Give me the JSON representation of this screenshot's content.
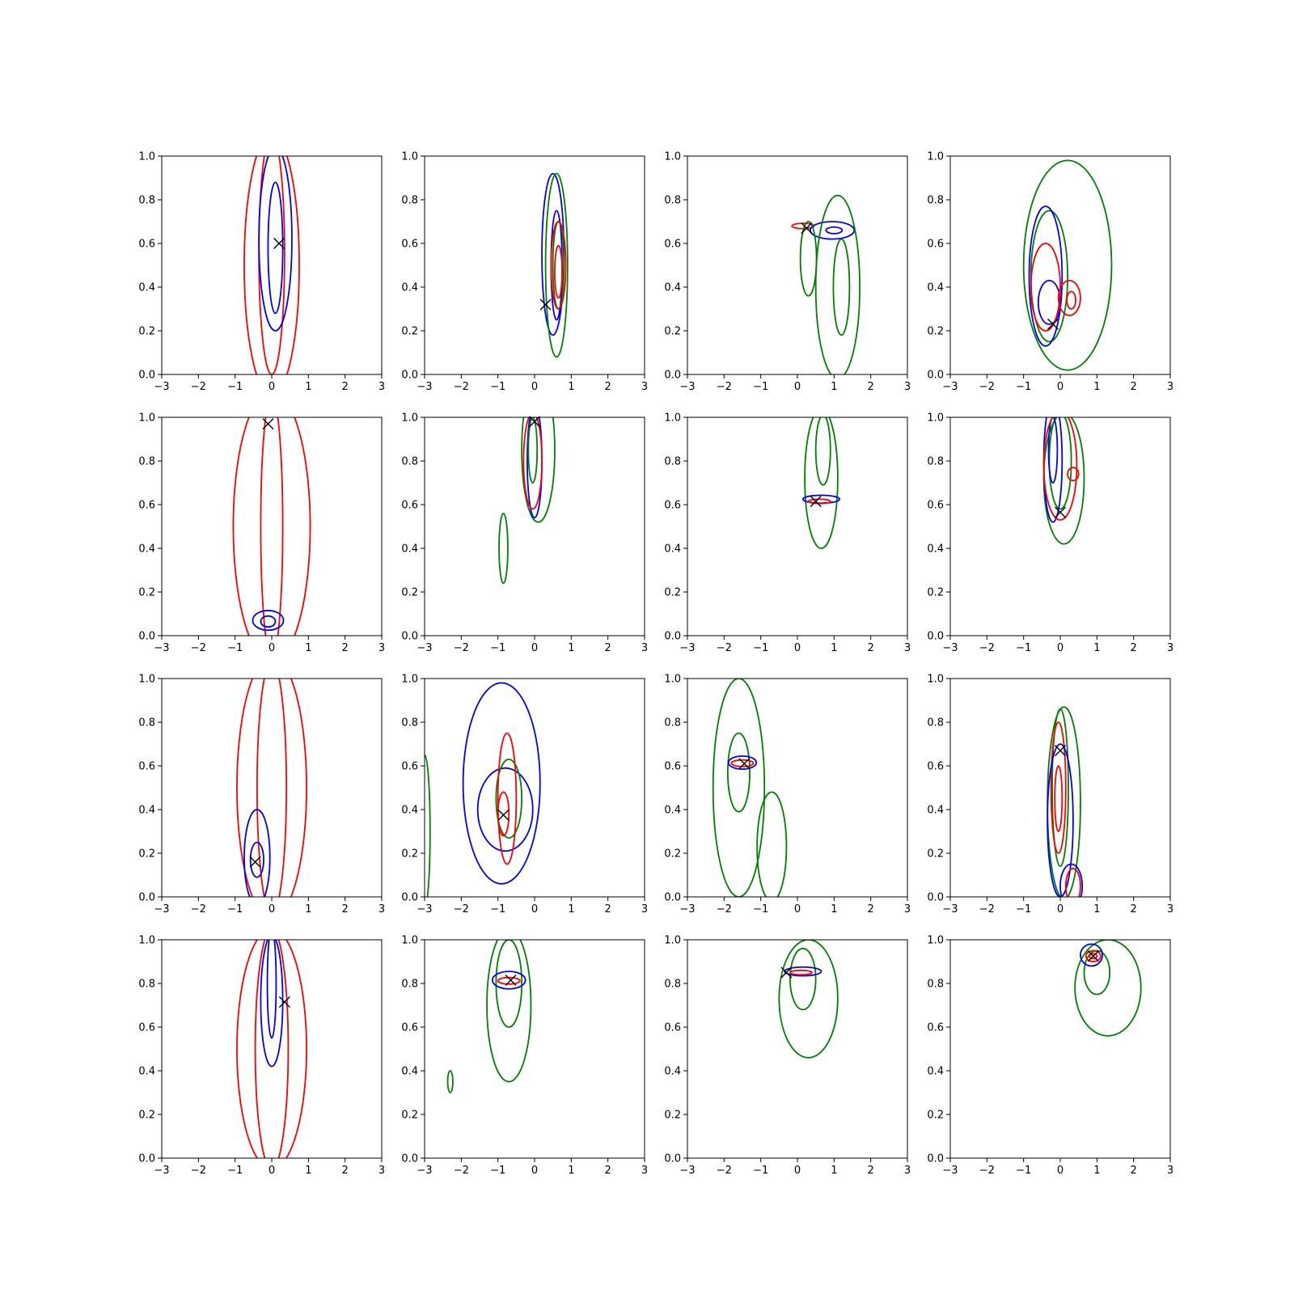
{
  "chart_data": {
    "type": "contour-grid",
    "title": "",
    "rows": 4,
    "cols": 4,
    "xlim": [
      -3,
      3
    ],
    "ylim": [
      0,
      1
    ],
    "xticks": [
      -3,
      -2,
      -1,
      0,
      1,
      2,
      3
    ],
    "yticks": [
      0.0,
      0.2,
      0.4,
      0.6,
      0.8,
      1.0
    ],
    "xtick_labels": [
      "−3",
      "−2",
      "−1",
      "0",
      "1",
      "2",
      "3"
    ],
    "ytick_labels": [
      "0.0",
      "0.2",
      "0.4",
      "0.6",
      "0.8",
      "1.0"
    ],
    "colors": {
      "red": "#ff0000",
      "blue": "#0000ff",
      "green": "#008000",
      "marker": "#000000"
    },
    "grid": false,
    "panels": [
      {
        "marker": [
          0.2,
          0.6
        ],
        "contours": [
          {
            "color": "red",
            "cx": 0.0,
            "cy": 0.5,
            "rx": 0.75,
            "ry": 0.6
          },
          {
            "color": "red",
            "cx": 0.0,
            "cy": 0.55,
            "rx": 0.35,
            "ry": 0.55
          },
          {
            "color": "blue",
            "cx": 0.1,
            "cy": 0.62,
            "rx": 0.45,
            "ry": 0.42
          },
          {
            "color": "blue",
            "cx": 0.1,
            "cy": 0.58,
            "rx": 0.2,
            "ry": 0.3
          }
        ]
      },
      {
        "marker": [
          0.3,
          0.32
        ],
        "contours": [
          {
            "color": "blue",
            "cx": 0.5,
            "cy": 0.55,
            "rx": 0.3,
            "ry": 0.37
          },
          {
            "color": "blue",
            "cx": 0.6,
            "cy": 0.5,
            "rx": 0.15,
            "ry": 0.25
          },
          {
            "color": "green",
            "cx": 0.6,
            "cy": 0.5,
            "rx": 0.3,
            "ry": 0.42
          },
          {
            "color": "green",
            "cx": 0.65,
            "cy": 0.5,
            "rx": 0.15,
            "ry": 0.2
          },
          {
            "color": "red",
            "cx": 0.65,
            "cy": 0.5,
            "rx": 0.2,
            "ry": 0.2
          },
          {
            "color": "red",
            "cx": 0.65,
            "cy": 0.47,
            "rx": 0.1,
            "ry": 0.12
          }
        ]
      },
      {
        "marker": [
          0.25,
          0.67
        ],
        "contours": [
          {
            "color": "red",
            "cx": 0.15,
            "cy": 0.68,
            "rx": 0.3,
            "ry": 0.012
          },
          {
            "color": "blue",
            "cx": 0.95,
            "cy": 0.66,
            "rx": 0.6,
            "ry": 0.04
          },
          {
            "color": "blue",
            "cx": 1.0,
            "cy": 0.66,
            "rx": 0.22,
            "ry": 0.015
          },
          {
            "color": "green",
            "cx": 0.3,
            "cy": 0.53,
            "rx": 0.22,
            "ry": 0.17
          },
          {
            "color": "green",
            "cx": 1.1,
            "cy": 0.4,
            "rx": 0.6,
            "ry": 0.42
          },
          {
            "color": "green",
            "cx": 1.2,
            "cy": 0.4,
            "rx": 0.22,
            "ry": 0.22
          }
        ]
      },
      {
        "marker": [
          -0.2,
          0.23
        ],
        "contours": [
          {
            "color": "green",
            "cx": 0.2,
            "cy": 0.5,
            "rx": 1.2,
            "ry": 0.48
          },
          {
            "color": "green",
            "cx": -0.3,
            "cy": 0.45,
            "rx": 0.5,
            "ry": 0.3
          },
          {
            "color": "blue",
            "cx": -0.4,
            "cy": 0.45,
            "rx": 0.45,
            "ry": 0.32
          },
          {
            "color": "blue",
            "cx": -0.3,
            "cy": 0.33,
            "rx": 0.3,
            "ry": 0.1
          },
          {
            "color": "red",
            "cx": -0.4,
            "cy": 0.4,
            "rx": 0.4,
            "ry": 0.2
          },
          {
            "color": "red",
            "cx": 0.25,
            "cy": 0.35,
            "rx": 0.3,
            "ry": 0.08
          },
          {
            "color": "red",
            "cx": 0.3,
            "cy": 0.34,
            "rx": 0.12,
            "ry": 0.04
          }
        ]
      },
      {
        "marker": [
          -0.1,
          0.97
        ],
        "contours": [
          {
            "color": "red",
            "cx": 0.0,
            "cy": 0.5,
            "rx": 1.05,
            "ry": 0.62
          },
          {
            "color": "red",
            "cx": 0.0,
            "cy": 0.5,
            "rx": 0.3,
            "ry": 0.6
          },
          {
            "color": "blue",
            "cx": -0.1,
            "cy": 0.07,
            "rx": 0.42,
            "ry": 0.045
          },
          {
            "color": "blue",
            "cx": -0.1,
            "cy": 0.065,
            "rx": 0.2,
            "ry": 0.025
          }
        ]
      },
      {
        "marker": [
          0.0,
          0.98
        ],
        "contours": [
          {
            "color": "green",
            "cx": 0.1,
            "cy": 0.85,
            "rx": 0.45,
            "ry": 0.33
          },
          {
            "color": "green",
            "cx": -0.85,
            "cy": 0.4,
            "rx": 0.12,
            "ry": 0.16
          },
          {
            "color": "blue",
            "cx": 0.0,
            "cy": 0.8,
            "rx": 0.2,
            "ry": 0.26
          },
          {
            "color": "red",
            "cx": -0.05,
            "cy": 0.8,
            "rx": 0.25,
            "ry": 0.22
          },
          {
            "color": "green",
            "cx": -0.05,
            "cy": 0.85,
            "rx": 0.12,
            "ry": 0.15
          }
        ]
      },
      {
        "marker": [
          0.5,
          0.615
        ],
        "contours": [
          {
            "color": "green",
            "cx": 0.65,
            "cy": 0.72,
            "rx": 0.45,
            "ry": 0.32
          },
          {
            "color": "green",
            "cx": 0.7,
            "cy": 0.85,
            "rx": 0.2,
            "ry": 0.16
          },
          {
            "color": "blue",
            "cx": 0.65,
            "cy": 0.625,
            "rx": 0.5,
            "ry": 0.018
          },
          {
            "color": "red",
            "cx": 0.6,
            "cy": 0.615,
            "rx": 0.3,
            "ry": 0.01
          }
        ]
      },
      {
        "marker": [
          0.0,
          0.565
        ],
        "contours": [
          {
            "color": "green",
            "cx": 0.1,
            "cy": 0.72,
            "rx": 0.55,
            "ry": 0.3
          },
          {
            "color": "green",
            "cx": 0.0,
            "cy": 0.8,
            "rx": 0.3,
            "ry": 0.22
          },
          {
            "color": "blue",
            "cx": -0.2,
            "cy": 0.8,
            "rx": 0.25,
            "ry": 0.28
          },
          {
            "color": "blue",
            "cx": -0.2,
            "cy": 0.85,
            "rx": 0.12,
            "ry": 0.15
          },
          {
            "color": "red",
            "cx": 0.0,
            "cy": 0.78,
            "rx": 0.45,
            "ry": 0.25
          },
          {
            "color": "red",
            "cx": 0.35,
            "cy": 0.74,
            "rx": 0.15,
            "ry": 0.03
          }
        ]
      },
      {
        "marker": [
          -0.45,
          0.16
        ],
        "contours": [
          {
            "color": "red",
            "cx": 0.0,
            "cy": 0.5,
            "rx": 0.95,
            "ry": 0.6
          },
          {
            "color": "red",
            "cx": 0.0,
            "cy": 0.5,
            "rx": 0.4,
            "ry": 0.58
          },
          {
            "color": "blue",
            "cx": -0.4,
            "cy": 0.18,
            "rx": 0.35,
            "ry": 0.22
          },
          {
            "color": "blue",
            "cx": -0.4,
            "cy": 0.17,
            "rx": 0.18,
            "ry": 0.08
          }
        ]
      },
      {
        "marker": [
          -0.85,
          0.375
        ],
        "contours": [
          {
            "color": "blue",
            "cx": -0.9,
            "cy": 0.52,
            "rx": 1.05,
            "ry": 0.46
          },
          {
            "color": "blue",
            "cx": -0.8,
            "cy": 0.4,
            "rx": 0.75,
            "ry": 0.19
          },
          {
            "color": "green",
            "cx": -0.7,
            "cy": 0.45,
            "rx": 0.35,
            "ry": 0.18
          },
          {
            "color": "red",
            "cx": -0.75,
            "cy": 0.45,
            "rx": 0.25,
            "ry": 0.3
          },
          {
            "color": "red",
            "cx": -0.85,
            "cy": 0.38,
            "rx": 0.15,
            "ry": 0.1
          },
          {
            "color": "green",
            "cx": -3.0,
            "cy": 0.3,
            "rx": 0.15,
            "ry": 0.35
          }
        ]
      },
      {
        "marker": [
          -1.45,
          0.61
        ],
        "contours": [
          {
            "color": "green",
            "cx": -1.6,
            "cy": 0.5,
            "rx": 0.7,
            "ry": 0.5
          },
          {
            "color": "green",
            "cx": -1.6,
            "cy": 0.57,
            "rx": 0.3,
            "ry": 0.18
          },
          {
            "color": "green",
            "cx": -0.7,
            "cy": 0.23,
            "rx": 0.4,
            "ry": 0.25
          },
          {
            "color": "blue",
            "cx": -1.5,
            "cy": 0.615,
            "rx": 0.38,
            "ry": 0.03
          },
          {
            "color": "red",
            "cx": -1.5,
            "cy": 0.612,
            "rx": 0.3,
            "ry": 0.015
          }
        ]
      },
      {
        "marker": [
          0.0,
          0.67
        ],
        "contours": [
          {
            "color": "green",
            "cx": 0.1,
            "cy": 0.43,
            "rx": 0.45,
            "ry": 0.44
          },
          {
            "color": "green",
            "cx": 0.0,
            "cy": 0.5,
            "rx": 0.22,
            "ry": 0.36
          },
          {
            "color": "red",
            "cx": -0.05,
            "cy": 0.5,
            "rx": 0.2,
            "ry": 0.3
          },
          {
            "color": "red",
            "cx": -0.05,
            "cy": 0.45,
            "rx": 0.1,
            "ry": 0.15
          },
          {
            "color": "blue",
            "cx": 0.0,
            "cy": 0.35,
            "rx": 0.35,
            "ry": 0.35
          },
          {
            "color": "blue",
            "cx": 0.3,
            "cy": 0.05,
            "rx": 0.3,
            "ry": 0.1
          },
          {
            "color": "red",
            "cx": 0.35,
            "cy": 0.05,
            "rx": 0.2,
            "ry": 0.08
          }
        ]
      },
      {
        "marker": [
          0.35,
          0.715
        ],
        "contours": [
          {
            "color": "red",
            "cx": 0.0,
            "cy": 0.5,
            "rx": 0.95,
            "ry": 0.55
          },
          {
            "color": "red",
            "cx": 0.0,
            "cy": 0.5,
            "rx": 0.45,
            "ry": 0.55
          },
          {
            "color": "blue",
            "cx": 0.0,
            "cy": 0.72,
            "rx": 0.3,
            "ry": 0.3
          },
          {
            "color": "blue",
            "cx": 0.0,
            "cy": 0.8,
            "rx": 0.12,
            "ry": 0.25
          }
        ]
      },
      {
        "marker": [
          -0.65,
          0.815
        ],
        "contours": [
          {
            "color": "green",
            "cx": -0.7,
            "cy": 0.7,
            "rx": 0.6,
            "ry": 0.35
          },
          {
            "color": "green",
            "cx": -0.7,
            "cy": 0.8,
            "rx": 0.35,
            "ry": 0.2
          },
          {
            "color": "green",
            "cx": -2.3,
            "cy": 0.35,
            "rx": 0.07,
            "ry": 0.05
          },
          {
            "color": "blue",
            "cx": -0.7,
            "cy": 0.815,
            "rx": 0.45,
            "ry": 0.04
          },
          {
            "color": "red",
            "cx": -0.7,
            "cy": 0.812,
            "rx": 0.3,
            "ry": 0.015
          }
        ]
      },
      {
        "marker": [
          -0.3,
          0.85
        ],
        "contours": [
          {
            "color": "green",
            "cx": 0.3,
            "cy": 0.73,
            "rx": 0.8,
            "ry": 0.27
          },
          {
            "color": "green",
            "cx": 0.15,
            "cy": 0.82,
            "rx": 0.35,
            "ry": 0.14
          },
          {
            "color": "blue",
            "cx": 0.15,
            "cy": 0.855,
            "rx": 0.5,
            "ry": 0.02
          },
          {
            "color": "red",
            "cx": 0.1,
            "cy": 0.85,
            "rx": 0.3,
            "ry": 0.01
          }
        ]
      },
      {
        "marker": [
          0.9,
          0.925
        ],
        "contours": [
          {
            "color": "green",
            "cx": 1.3,
            "cy": 0.78,
            "rx": 0.9,
            "ry": 0.22
          },
          {
            "color": "green",
            "cx": 1.0,
            "cy": 0.85,
            "rx": 0.35,
            "ry": 0.1
          },
          {
            "color": "blue",
            "cx": 0.85,
            "cy": 0.93,
            "rx": 0.3,
            "ry": 0.05
          },
          {
            "color": "red",
            "cx": 0.9,
            "cy": 0.925,
            "rx": 0.2,
            "ry": 0.025
          },
          {
            "color": "red",
            "cx": 0.9,
            "cy": 0.925,
            "rx": 0.1,
            "ry": 0.012
          }
        ]
      }
    ]
  }
}
